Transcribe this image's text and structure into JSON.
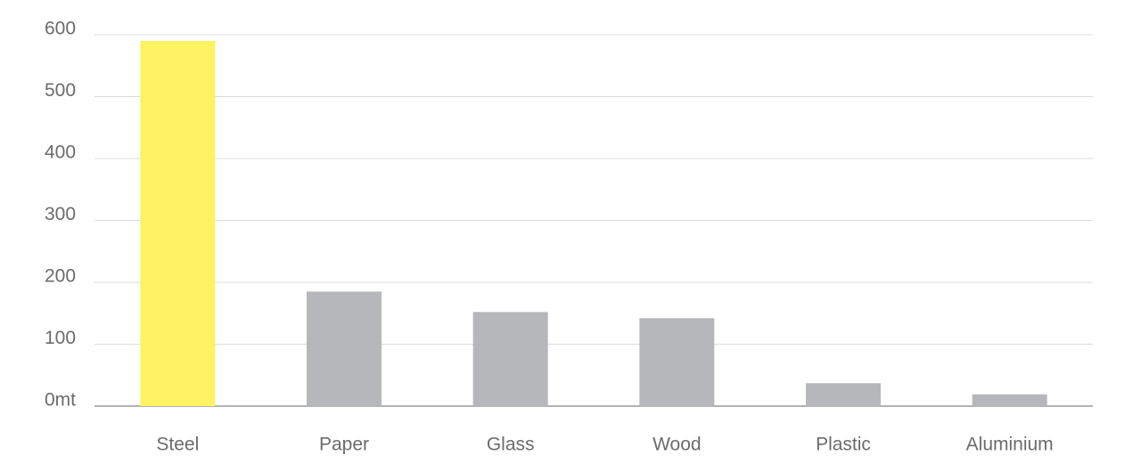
{
  "chart_data": {
    "type": "bar",
    "categories": [
      "Steel",
      "Paper",
      "Glass",
      "Wood",
      "Plastic",
      "Aluminium"
    ],
    "values": [
      590,
      185,
      152,
      142,
      37,
      19
    ],
    "colors": [
      "#fff263",
      "#b6b7ba",
      "#b6b7ba",
      "#b6b7ba",
      "#b6b7ba",
      "#b6b7ba"
    ],
    "ylim": [
      0,
      600
    ],
    "yticks": [
      {
        "value": 0,
        "label": "0mt"
      },
      100,
      200,
      300,
      400,
      500,
      600
    ],
    "grid": true
  }
}
